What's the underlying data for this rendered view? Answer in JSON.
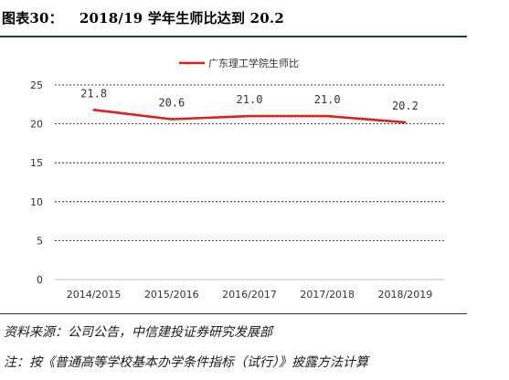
{
  "figure": {
    "label": "图表30：",
    "title": "2018/19 学年生师比达到 20.2"
  },
  "source": "资料来源：公司公告，中信建投证券研究发展部",
  "note": "注：按《普通高等学校基本办学条件指标（试行）》披露方法计算",
  "colors": {
    "series_line": "#e02020",
    "rule": "#1f3864",
    "grid": "#000000"
  },
  "chart_data": {
    "type": "line",
    "title": "",
    "xlabel": "",
    "ylabel": "",
    "categories": [
      "2014/2015",
      "2015/2016",
      "2016/2017",
      "2017/2018",
      "2018/2019"
    ],
    "series": [
      {
        "name": "广东理工学院生师比",
        "values": [
          21.8,
          20.6,
          21.0,
          21.0,
          20.2
        ],
        "data_labels": [
          "21.8",
          "20.6",
          "21.0",
          "21.0",
          "20.2"
        ]
      }
    ],
    "ylim": [
      0,
      25
    ],
    "yticks": [
      0,
      5,
      10,
      15,
      20,
      25
    ],
    "grid": "dashed horizontal",
    "legend": "top-center"
  }
}
